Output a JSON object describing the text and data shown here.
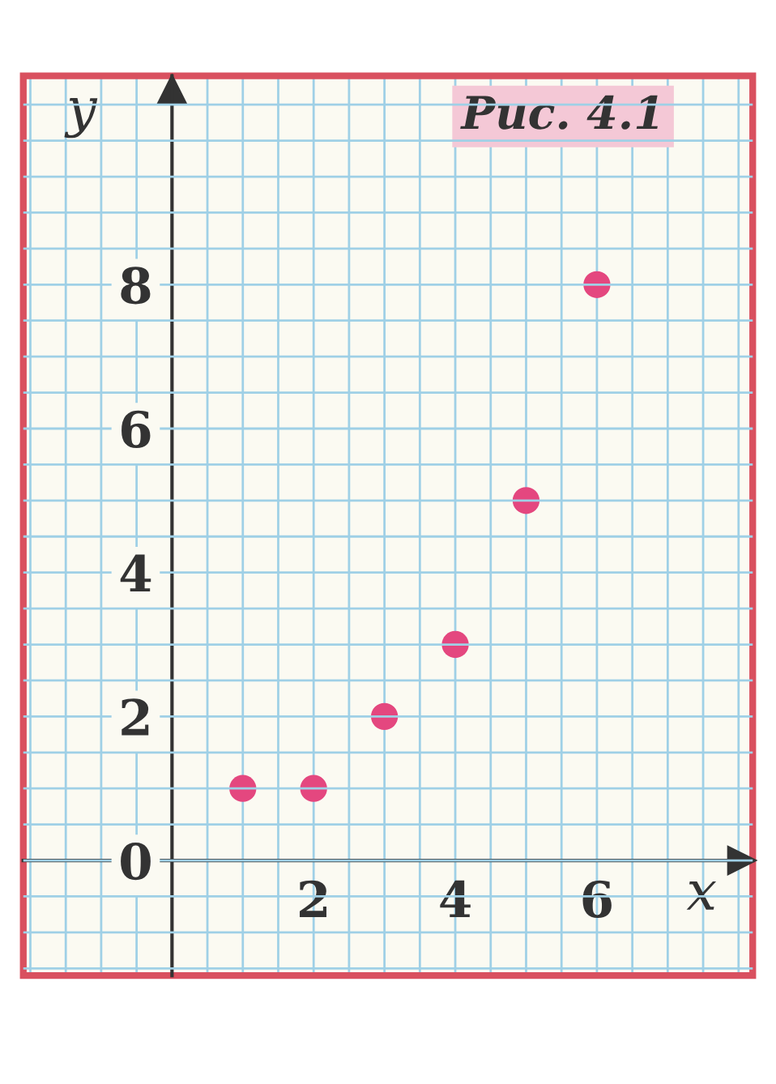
{
  "chart_data": {
    "type": "scatter",
    "title": "Рис. 4.1",
    "xlabel": "x",
    "ylabel": "y",
    "x": [
      1,
      2,
      3,
      4,
      5,
      6
    ],
    "series": [
      {
        "color": "#e4477f",
        "values": [
          1,
          1,
          2,
          3,
          5,
          8
        ]
      }
    ],
    "xlim": [
      -2.1,
      8.2
    ],
    "ylim": [
      -1.6,
      10.9
    ],
    "xticks": [
      2,
      4,
      6
    ],
    "yticks": [
      0,
      2,
      4,
      6,
      8
    ],
    "grid": true,
    "marker": "circle"
  }
}
